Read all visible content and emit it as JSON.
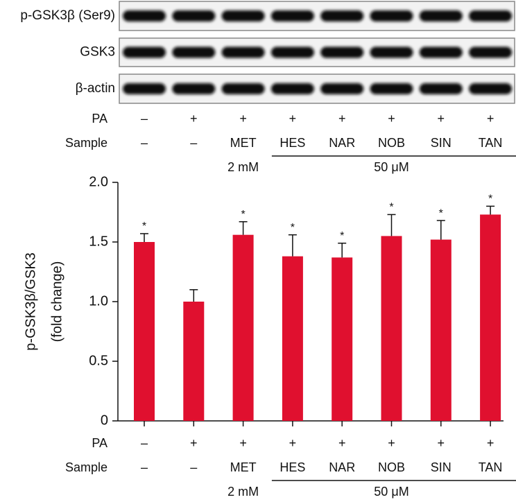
{
  "blots": [
    "p-GSK3β (Ser9)",
    "GSK3",
    "β-actin"
  ],
  "chart_data": {
    "type": "bar",
    "ylabel": [
      "p-GSK3β/GSK3",
      "(fold change)"
    ],
    "row_labels": [
      "PA",
      "Sample"
    ],
    "PA": [
      "–",
      "+",
      "+",
      "+",
      "+",
      "+",
      "+",
      "+"
    ],
    "Sample": [
      "–",
      "–",
      "MET",
      "HES",
      "NAR",
      "NOB",
      "SIN",
      "TAN"
    ],
    "doses": [
      {
        "label": "2 mM",
        "lanes": [
          2
        ]
      },
      {
        "label": "50 μM",
        "lanes": [
          3,
          4,
          5,
          6,
          7
        ]
      }
    ],
    "values": [
      1.5,
      1.0,
      1.56,
      1.38,
      1.37,
      1.55,
      1.52,
      1.73
    ],
    "errors": [
      0.07,
      0.1,
      0.11,
      0.18,
      0.12,
      0.18,
      0.16,
      0.07
    ],
    "annotations": [
      "*",
      null,
      "*",
      "*",
      "*",
      "*",
      "*",
      "*"
    ],
    "color": "#e0102f",
    "ylim": [
      0,
      2
    ],
    "yticks": [
      0,
      0.5,
      {
        "value": 1,
        "label": "1.0"
      },
      1.5,
      {
        "value": 2,
        "label": "2.0"
      }
    ]
  }
}
